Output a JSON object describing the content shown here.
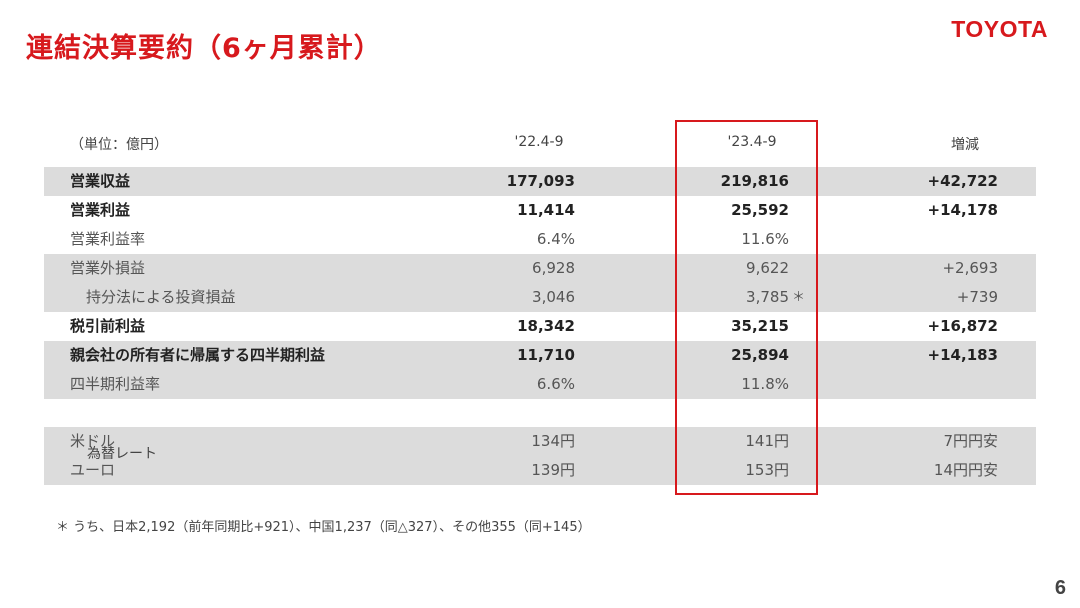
{
  "title": "連結決算要約（6ヶ月累計）",
  "logo": "TOYOTA",
  "unit": "（単位：億円）",
  "columns": [
    "'22.4-9",
    "'23.4-9",
    "増減"
  ],
  "rows": [
    {
      "label": "営業収益",
      "c1": "177,093",
      "c2": "219,816",
      "c3": "+42,722"
    },
    {
      "label": "営業利益",
      "c1": "11,414",
      "c2": "25,592",
      "c3": "+14,178"
    },
    {
      "label": "営業利益率",
      "c1": "6.4%",
      "c2": "11.6%",
      "c3": ""
    },
    {
      "label": "営業外損益",
      "c1": "6,928",
      "c2": "9,622",
      "c3": "+2,693"
    },
    {
      "label": "持分法による投資損益",
      "c1": "3,046",
      "c2": "3,785",
      "note": "＊",
      "c3": "+739"
    },
    {
      "label": "税引前利益",
      "c1": "18,342",
      "c2": "35,215",
      "c3": "+16,872"
    },
    {
      "label": "親会社の所有者に帰属する四半期利益",
      "c1": "11,710",
      "c2": "25,894",
      "c3": "+14,183"
    },
    {
      "label": "四半期利益率",
      "c1": "6.6%",
      "c2": "11.8%",
      "c3": ""
    }
  ],
  "fx": {
    "label": "為替レート",
    "rows": [
      {
        "label": "米ドル",
        "c1": "134円",
        "c2": "141円",
        "c3": "7円円安"
      },
      {
        "label": "ユーロ",
        "c1": "139円",
        "c2": "153円",
        "c3": "14円円安"
      }
    ]
  },
  "footnote": "＊ うち、日本2,192（前年同期比+921）、中国1,237（同△327）、その他355（同+145）",
  "page_number": "6",
  "colors": {
    "accent": "#d7191d",
    "shade": "#dcdcdc"
  }
}
